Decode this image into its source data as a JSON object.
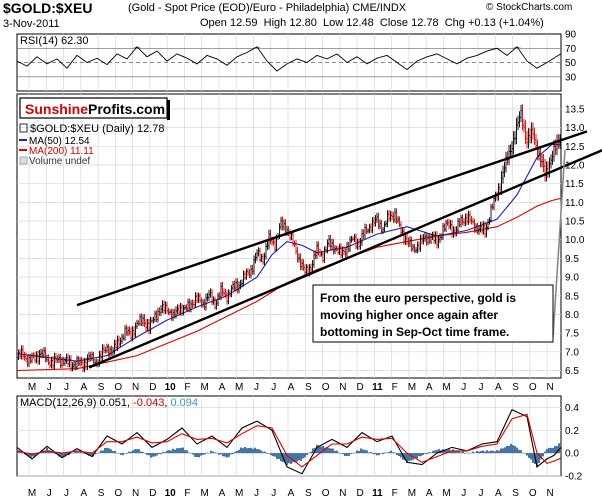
{
  "header": {
    "symbol": "$GOLD:$XEU",
    "description": "(Gold - Spot Price (EOD)/Euro - Philadelphia) CME/INDX",
    "credit": "© StockCharts.com",
    "date": "3-Nov-2011",
    "ohlc": [
      {
        "label": "Open",
        "value": "12.59"
      },
      {
        "label": "High",
        "value": "12.80"
      },
      {
        "label": "Low",
        "value": "12.48"
      },
      {
        "label": "Close",
        "value": "12.78"
      },
      {
        "label": "Chg",
        "value": "+0.13 (+1.04%)"
      }
    ]
  },
  "colors": {
    "price": "#000000",
    "up_bar": "#000000",
    "down_bar": "#cc0000",
    "ma50": "#2222aa",
    "ma200": "#dd0000",
    "macd_hist": "#336699",
    "rsi_fill": "#3a8a3a",
    "grid": "#d8d8d8",
    "trendline": "#000000",
    "pointer": "#888888"
  },
  "logo": {
    "part1": "Sunshine",
    "part2": "Profits.com",
    "color1": "#cc0000",
    "color2": "#000000"
  },
  "annotation": {
    "lines": [
      "From the euro perspective, gold is",
      "moving higher once again after",
      "bottoming in Sep-Oct time frame."
    ]
  },
  "chart_data": [
    {
      "type": "line",
      "panel": "rsi",
      "legend": "RSI(14) 62.30",
      "ylim": [
        10,
        90
      ],
      "yticks": [
        90,
        70,
        50,
        30
      ],
      "overbought": 70,
      "oversold": 30,
      "series": [
        {
          "name": "RSI(14)",
          "x": [
            0,
            10,
            20,
            30,
            40,
            50,
            60,
            70,
            80,
            90,
            100,
            110,
            120,
            130,
            140,
            150,
            160,
            170,
            180,
            190,
            200,
            210,
            220,
            230,
            240,
            250,
            260,
            270,
            280,
            290,
            300,
            310,
            320,
            330,
            340,
            350,
            360,
            370,
            380,
            390,
            400,
            410,
            420,
            430,
            440,
            450,
            460,
            470,
            480,
            490,
            500,
            510,
            520,
            530,
            544
          ],
          "values": [
            52,
            45,
            58,
            48,
            55,
            42,
            60,
            50,
            56,
            47,
            62,
            55,
            72,
            58,
            66,
            52,
            62,
            56,
            48,
            60,
            55,
            46,
            58,
            64,
            72,
            52,
            38,
            48,
            55,
            50,
            60,
            55,
            62,
            50,
            58,
            48,
            56,
            60,
            50,
            40,
            52,
            58,
            62,
            55,
            48,
            56,
            60,
            66,
            70,
            60,
            72,
            52,
            42,
            50,
            62.3
          ]
        }
      ]
    },
    {
      "type": "line",
      "panel": "price",
      "title": "$GOLD:$XEU (Daily) 12.78",
      "legend": [
        {
          "name": "$GOLD:$XEU (Daily) 12.78",
          "style": "bar"
        },
        {
          "name": "MA(50) 12.54",
          "style": "line"
        },
        {
          "name": "MA(200) 11.11",
          "style": "line"
        },
        {
          "name": "Volume undef",
          "style": "box"
        }
      ],
      "ylim": [
        6.3,
        13.9
      ],
      "yticks": [
        6.5,
        7.0,
        7.5,
        8.0,
        8.5,
        9.0,
        9.5,
        10.0,
        10.5,
        11.0,
        11.5,
        12.0,
        12.5,
        13.0,
        13.5
      ],
      "series": [
        {
          "name": "$GOLD:$XEU",
          "x": [
            0,
            6,
            12,
            18,
            24,
            30,
            36,
            42,
            48,
            54,
            60,
            66,
            72,
            78,
            84,
            90,
            96,
            102,
            108,
            114,
            120,
            126,
            132,
            138,
            144,
            150,
            156,
            162,
            168,
            174,
            180,
            186,
            192,
            198,
            204,
            210,
            216,
            222,
            228,
            234,
            240,
            246,
            252,
            258,
            264,
            270,
            276,
            282,
            288,
            294,
            300,
            306,
            312,
            318,
            324,
            330,
            336,
            342,
            348,
            354,
            360,
            366,
            372,
            378,
            384,
            390,
            396,
            402,
            408,
            414,
            420,
            426,
            432,
            438,
            444,
            450,
            456,
            462,
            468,
            474,
            480,
            486,
            492,
            498,
            504,
            510,
            516,
            522,
            528,
            534,
            540,
            544
          ],
          "values": [
            6.85,
            6.95,
            6.75,
            6.85,
            6.95,
            6.8,
            6.7,
            6.8,
            6.75,
            6.65,
            6.7,
            6.65,
            6.85,
            6.7,
            6.9,
            7.1,
            7.0,
            7.3,
            7.5,
            7.5,
            7.7,
            7.9,
            7.6,
            8.0,
            8.1,
            8.2,
            7.9,
            8.2,
            8.1,
            8.3,
            8.4,
            8.3,
            8.5,
            8.3,
            8.6,
            8.5,
            8.7,
            8.8,
            9.0,
            9.2,
            9.6,
            9.5,
            10.0,
            9.9,
            10.4,
            10.3,
            9.9,
            9.5,
            9.1,
            9.3,
            9.7,
            9.6,
            9.9,
            9.8,
            9.6,
            9.8,
            10.0,
            9.9,
            10.2,
            10.4,
            10.5,
            10.3,
            10.6,
            10.7,
            10.2,
            10.0,
            9.7,
            9.9,
            10.0,
            10.1,
            9.9,
            10.3,
            10.4,
            10.2,
            10.5,
            10.6,
            10.4,
            10.3,
            10.2,
            10.8,
            11.2,
            11.8,
            12.3,
            12.8,
            13.4,
            12.6,
            12.9,
            12.2,
            11.8,
            12.1,
            12.59,
            12.78
          ]
        },
        {
          "name": "MA(50)",
          "x": [
            0,
            30,
            60,
            90,
            120,
            150,
            180,
            210,
            240,
            255,
            270,
            285,
            300,
            330,
            360,
            390,
            420,
            450,
            480,
            500,
            520,
            535,
            544
          ],
          "values": [
            6.95,
            6.85,
            6.75,
            6.9,
            7.4,
            7.85,
            8.2,
            8.5,
            9.0,
            9.6,
            9.95,
            9.85,
            9.65,
            9.8,
            10.15,
            10.35,
            10.1,
            10.25,
            10.55,
            11.2,
            12.2,
            12.55,
            12.54
          ]
        },
        {
          "name": "MA(200)",
          "x": [
            0,
            60,
            120,
            180,
            240,
            270,
            300,
            330,
            360,
            390,
            420,
            450,
            480,
            500,
            520,
            535,
            544
          ],
          "values": [
            6.5,
            6.55,
            6.9,
            7.55,
            8.35,
            8.85,
            9.2,
            9.5,
            9.8,
            9.95,
            10.1,
            10.2,
            10.35,
            10.6,
            10.9,
            11.05,
            11.11
          ]
        }
      ],
      "trendlines": [
        {
          "name": "upper",
          "from": [
            60,
            8.25
          ],
          "to": [
            570,
            12.9
          ]
        },
        {
          "name": "lower",
          "from": [
            72,
            6.58
          ],
          "to": [
            590,
            12.45
          ]
        },
        {
          "name": "pointer",
          "from": [
            548,
            12.4
          ],
          "to": [
            536,
            7.4
          ]
        }
      ]
    },
    {
      "type": "line",
      "panel": "macd",
      "legend": {
        "label": "MACD(12,26,9)",
        "v1": "0.051",
        "v2": "-0.043",
        "v3": "0.094",
        "c1": "#000000",
        "c2": "#cc0000",
        "c3": "#4a90c0"
      },
      "ylim": [
        -0.2,
        0.5
      ],
      "yticks": [
        0.4,
        0.2,
        0.0,
        -0.2
      ],
      "series": [
        {
          "name": "MACD",
          "x": [
            0,
            15,
            30,
            45,
            60,
            75,
            90,
            105,
            120,
            135,
            150,
            165,
            180,
            195,
            210,
            225,
            240,
            255,
            270,
            285,
            300,
            315,
            330,
            345,
            360,
            375,
            390,
            405,
            420,
            435,
            450,
            465,
            480,
            495,
            510,
            520,
            530,
            537,
            544
          ],
          "values": [
            0.05,
            -0.05,
            0.06,
            -0.04,
            0.04,
            -0.03,
            0.15,
            0.08,
            0.18,
            0.05,
            0.12,
            0.22,
            0.08,
            0.15,
            0.05,
            0.22,
            0.28,
            0.2,
            -0.12,
            -0.18,
            0.05,
            0.12,
            0.05,
            0.18,
            0.1,
            0.15,
            -0.08,
            -0.1,
            0.0,
            0.05,
            0.02,
            0.08,
            0.1,
            0.38,
            0.32,
            -0.12,
            -0.05,
            -0.02,
            0.051
          ]
        },
        {
          "name": "Signal",
          "x": [
            0,
            15,
            30,
            45,
            60,
            75,
            90,
            105,
            120,
            135,
            150,
            165,
            180,
            195,
            210,
            225,
            240,
            255,
            270,
            285,
            300,
            315,
            330,
            345,
            360,
            375,
            390,
            405,
            420,
            435,
            450,
            465,
            480,
            495,
            510,
            520,
            530,
            537,
            544
          ],
          "values": [
            0.02,
            -0.01,
            0.02,
            0.0,
            0.02,
            0.0,
            0.1,
            0.1,
            0.14,
            0.09,
            0.1,
            0.17,
            0.12,
            0.13,
            0.09,
            0.17,
            0.24,
            0.22,
            -0.02,
            -0.12,
            -0.02,
            0.08,
            0.08,
            0.14,
            0.12,
            0.13,
            0.0,
            -0.08,
            -0.03,
            0.02,
            0.02,
            0.06,
            0.08,
            0.3,
            0.34,
            0.0,
            -0.09,
            -0.07,
            -0.043
          ]
        },
        {
          "name": "Histogram",
          "x": [
            0,
            15,
            30,
            45,
            60,
            75,
            90,
            105,
            120,
            135,
            150,
            165,
            180,
            195,
            210,
            225,
            240,
            255,
            270,
            285,
            300,
            315,
            330,
            345,
            360,
            375,
            390,
            405,
            420,
            435,
            450,
            465,
            480,
            495,
            510,
            520,
            530,
            537,
            544
          ],
          "values": [
            0.03,
            -0.04,
            0.04,
            -0.04,
            0.02,
            -0.03,
            0.05,
            -0.02,
            0.04,
            -0.04,
            0.02,
            0.05,
            -0.04,
            0.02,
            -0.04,
            0.05,
            0.04,
            -0.02,
            -0.1,
            -0.06,
            0.07,
            0.04,
            -0.03,
            0.04,
            -0.02,
            0.02,
            -0.08,
            -0.02,
            0.03,
            0.03,
            0.0,
            0.02,
            0.02,
            0.08,
            -0.02,
            -0.12,
            0.04,
            0.05,
            0.094
          ]
        }
      ]
    }
  ],
  "x_axis": {
    "labels": [
      {
        "t": "M",
        "bold": false
      },
      {
        "t": "J",
        "bold": false
      },
      {
        "t": "J",
        "bold": false
      },
      {
        "t": "A",
        "bold": false
      },
      {
        "t": "S",
        "bold": false
      },
      {
        "t": "O",
        "bold": false
      },
      {
        "t": "N",
        "bold": false
      },
      {
        "t": "D",
        "bold": false
      },
      {
        "t": "10",
        "bold": true
      },
      {
        "t": "F",
        "bold": false
      },
      {
        "t": "M",
        "bold": false
      },
      {
        "t": "A",
        "bold": false
      },
      {
        "t": "M",
        "bold": false
      },
      {
        "t": "J",
        "bold": false
      },
      {
        "t": "J",
        "bold": false
      },
      {
        "t": "A",
        "bold": false
      },
      {
        "t": "S",
        "bold": false
      },
      {
        "t": "O",
        "bold": false
      },
      {
        "t": "N",
        "bold": false
      },
      {
        "t": "D",
        "bold": false
      },
      {
        "t": "11",
        "bold": true
      },
      {
        "t": "F",
        "bold": false
      },
      {
        "t": "M",
        "bold": false
      },
      {
        "t": "A",
        "bold": false
      },
      {
        "t": "M",
        "bold": false
      },
      {
        "t": "J",
        "bold": false
      },
      {
        "t": "J",
        "bold": false
      },
      {
        "t": "A",
        "bold": false
      },
      {
        "t": "S",
        "bold": false
      },
      {
        "t": "O",
        "bold": false
      },
      {
        "t": "N",
        "bold": false
      }
    ]
  }
}
